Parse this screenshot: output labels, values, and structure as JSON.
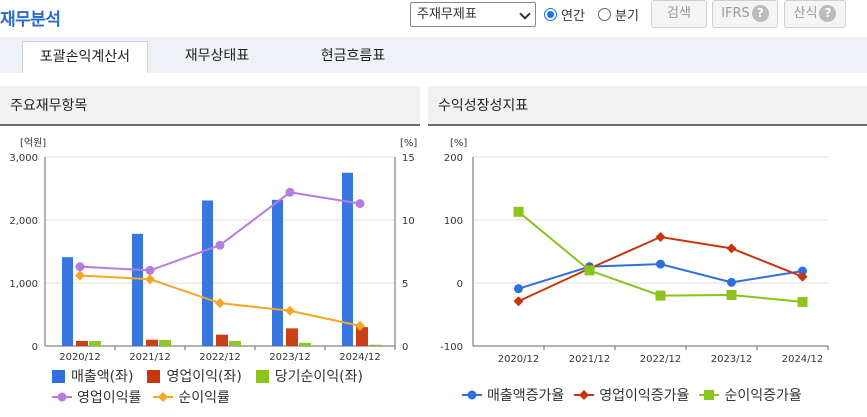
{
  "header": {
    "title": "재무분석",
    "select_value": "주재무제표",
    "radio_annual": "연간",
    "radio_quarter": "분기",
    "search_button": "검색",
    "ifrs_button": "IFRS",
    "formula_button": "산식",
    "help_glyph": "?"
  },
  "tabs": [
    {
      "label": "포괄손익계산서"
    },
    {
      "label": "재무상태표"
    },
    {
      "label": "현금흐름표"
    }
  ],
  "colors": {
    "sales": "#2f6fde",
    "op_profit": "#c9350c",
    "net_profit": "#8ac41c",
    "op_margin": "#b57ddf",
    "net_margin": "#f5a623",
    "g_sales": "#2f6fde",
    "g_op": "#c9350c",
    "g_net": "#8ac41c"
  },
  "left_panel": {
    "title": "주요재무항목"
  },
  "right_panel": {
    "title": "수익성장성지표"
  },
  "chart_data": [
    {
      "type": "bar",
      "categories": [
        "2020/12",
        "2021/12",
        "2022/12",
        "2023/12",
        "2024/12"
      ],
      "y_left_label": "[억원]",
      "y_right_label": "[%]",
      "y_left_lim": [
        0,
        3000
      ],
      "y_left_ticks": [
        "0",
        "1,000",
        "2,000",
        "3,000"
      ],
      "y_right_lim": [
        0,
        15
      ],
      "y_right_ticks": [
        "0",
        "5",
        "10",
        "15"
      ],
      "series": [
        {
          "name": "매출액(좌)",
          "type": "bar",
          "axis": "left",
          "values": [
            1410,
            1780,
            2310,
            2320,
            2750
          ]
        },
        {
          "name": "영업이익(좌)",
          "type": "bar",
          "axis": "left",
          "values": [
            80,
            100,
            180,
            280,
            300
          ]
        },
        {
          "name": "당기순이익(좌)",
          "type": "bar",
          "axis": "left",
          "values": [
            80,
            95,
            80,
            50,
            20
          ]
        },
        {
          "name": "영업이익률",
          "type": "line",
          "axis": "right",
          "values": [
            6.3,
            6.0,
            8.0,
            12.2,
            11.3
          ]
        },
        {
          "name": "순이익률",
          "type": "line",
          "axis": "right",
          "values": [
            5.6,
            5.3,
            3.4,
            2.8,
            1.6
          ]
        }
      ]
    },
    {
      "type": "line",
      "categories": [
        "2020/12",
        "2021/12",
        "2022/12",
        "2023/12",
        "2024/12"
      ],
      "y_label": "[%]",
      "ylim": [
        -100,
        200
      ],
      "y_ticks": [
        "-100",
        "0",
        "100",
        "200"
      ],
      "series": [
        {
          "name": "매출액증가율",
          "marker": "circle",
          "values": [
            -9,
            26,
            30,
            1,
            19
          ]
        },
        {
          "name": "영업이익증가율",
          "marker": "diamond",
          "values": [
            -29,
            23,
            73,
            55,
            10
          ]
        },
        {
          "name": "순이익증가율",
          "marker": "square",
          "values": [
            113,
            20,
            -20,
            -19,
            -30
          ]
        }
      ]
    }
  ]
}
